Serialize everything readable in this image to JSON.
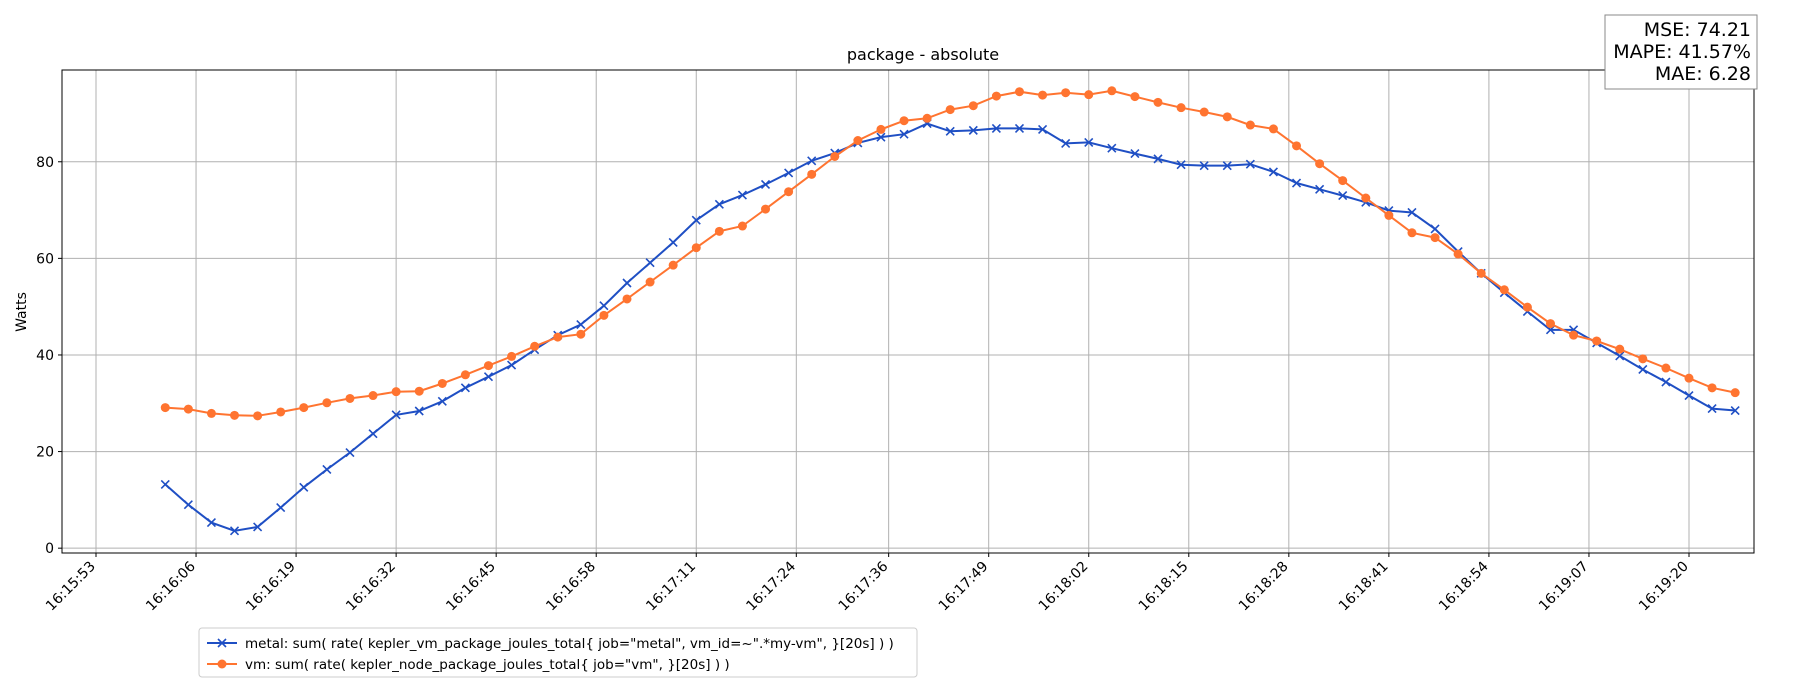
{
  "chart_data": {
    "type": "line",
    "title": "package - absolute",
    "xlabel": "",
    "ylabel": "Watts",
    "ylim": [
      -1,
      99
    ],
    "grid": true,
    "legend_position": "bottom-left, below plot",
    "x_tick_labels": [
      "16:15:53",
      "16:16:06",
      "16:16:19",
      "16:16:32",
      "16:16:45",
      "16:16:58",
      "16:17:11",
      "16:17:24",
      "16:17:36",
      "16:17:49",
      "16:18:02",
      "16:18:15",
      "16:18:28",
      "16:18:41",
      "16:18:54",
      "16:19:07",
      "16:19:20"
    ],
    "y_ticks": [
      0,
      20,
      40,
      60,
      80
    ],
    "x_start": "16:16:02",
    "x_step_seconds": 3,
    "series": [
      {
        "name": "metal: sum( rate( kepler_vm_package_joules_total{ job=\"metal\", vm_id=~\".*my-vm\", }[20s] ) )",
        "color": "#1f4fc4",
        "marker": "x",
        "values": [
          13.2,
          9.0,
          5.3,
          3.6,
          4.4,
          8.4,
          12.6,
          16.3,
          19.8,
          23.7,
          27.6,
          28.4,
          30.4,
          33.2,
          35.5,
          37.9,
          41.1,
          44.1,
          46.3,
          50.2,
          54.9,
          59.1,
          63.3,
          67.9,
          71.2,
          73.1,
          75.3,
          77.7,
          80.2,
          81.8,
          83.9,
          85.1,
          85.7,
          87.9,
          86.3,
          86.5,
          86.9,
          86.9,
          86.7,
          83.8,
          84.0,
          82.8,
          81.7,
          80.6,
          79.4,
          79.2,
          79.2,
          79.5,
          77.9,
          75.6,
          74.3,
          73.0,
          71.6,
          69.9,
          69.5,
          66.1,
          61.4,
          56.9,
          52.9,
          49.0,
          45.2,
          45.2,
          42.5,
          39.8,
          37.0,
          34.4,
          31.6,
          28.9,
          28.5
        ]
      },
      {
        "name": "vm: sum( rate( kepler_node_package_joules_total{ job=\"vm\", }[20s] ) )",
        "color": "#ff7430",
        "marker": "o",
        "values": [
          29.1,
          28.8,
          27.9,
          27.5,
          27.4,
          28.2,
          29.1,
          30.1,
          31.0,
          31.6,
          32.4,
          32.5,
          34.1,
          35.9,
          37.8,
          39.7,
          41.8,
          43.7,
          44.3,
          48.2,
          51.6,
          55.1,
          58.6,
          62.2,
          65.6,
          66.7,
          70.2,
          73.8,
          77.4,
          81.1,
          84.4,
          86.7,
          88.5,
          89.0,
          90.8,
          91.6,
          93.6,
          94.5,
          93.8,
          94.3,
          93.9,
          94.7,
          93.5,
          92.3,
          91.2,
          90.3,
          89.3,
          87.6,
          86.8,
          83.3,
          79.6,
          76.1,
          72.5,
          68.9,
          65.3,
          64.3,
          60.9,
          56.9,
          53.5,
          49.9,
          46.5,
          44.1,
          42.9,
          41.2,
          39.2,
          37.3,
          35.2,
          33.2,
          32.2
        ]
      }
    ]
  },
  "metrics": {
    "mse": "MSE: 74.21",
    "mape": "MAPE: 41.57%",
    "mae": "MAE: 6.28"
  }
}
